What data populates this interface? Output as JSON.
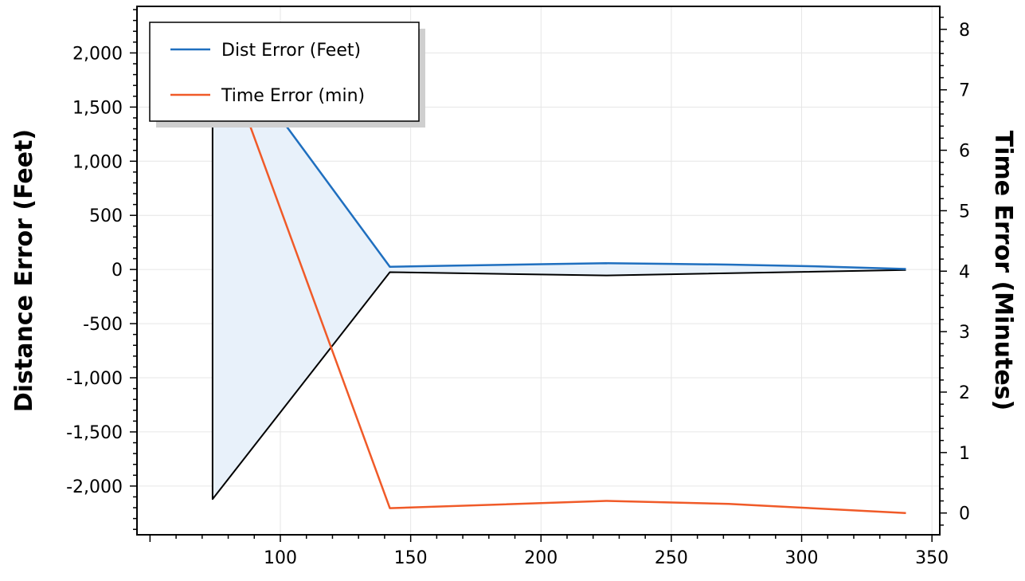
{
  "chart_data": {
    "type": "line",
    "title": "",
    "xlabel": "",
    "ylabel_left": "Distance Error (Feet)",
    "ylabel_right": "Time Error (Minutes)",
    "xlim": [
      45,
      353
    ],
    "ylim_left": [
      -2450,
      2430
    ],
    "ylim_right": [
      -0.36,
      8.38
    ],
    "x_ticks": [
      100,
      150,
      200,
      250,
      300,
      350
    ],
    "x_tick_labels": [
      "100",
      "150",
      "200",
      "250",
      "300",
      "350"
    ],
    "y_left_ticks": [
      2000,
      1500,
      1000,
      500,
      0,
      -500,
      -1000,
      -1500,
      -2000
    ],
    "y_left_tick_labels": [
      "2,000",
      "1,500",
      "1,000",
      "500",
      "0",
      "-500",
      "-1,000",
      "-1,500",
      "-2,000"
    ],
    "y_right_ticks": [
      8,
      7,
      6,
      5,
      4,
      3,
      2,
      1,
      0
    ],
    "y_right_tick_labels": [
      "8",
      "7",
      "6",
      "5",
      "4",
      "3",
      "2",
      "1",
      "0"
    ],
    "grid": true,
    "legend_position": "top-left",
    "series": [
      {
        "name": "Dist Error (Feet)",
        "axis": "left",
        "color": "#1f6fbf",
        "x": [
          74,
          142,
          165,
          205,
          225,
          250,
          272,
          305,
          340
        ],
        "y": [
          2250,
          25,
          35,
          50,
          58,
          52,
          45,
          30,
          5
        ]
      },
      {
        "name": "Time Error (min)",
        "axis": "right",
        "color": "#f05a28",
        "x": [
          74,
          142,
          225,
          272,
          340
        ],
        "y": [
          8.1,
          0.08,
          0.2,
          0.15,
          0.0
        ]
      }
    ],
    "error_band": {
      "axis": "left",
      "fill": "#e8f1fa",
      "outline": "#000000",
      "lower_x": [
        74,
        142,
        225,
        340
      ],
      "lower_y": [
        -2120,
        -25,
        -55,
        -5
      ]
    }
  }
}
